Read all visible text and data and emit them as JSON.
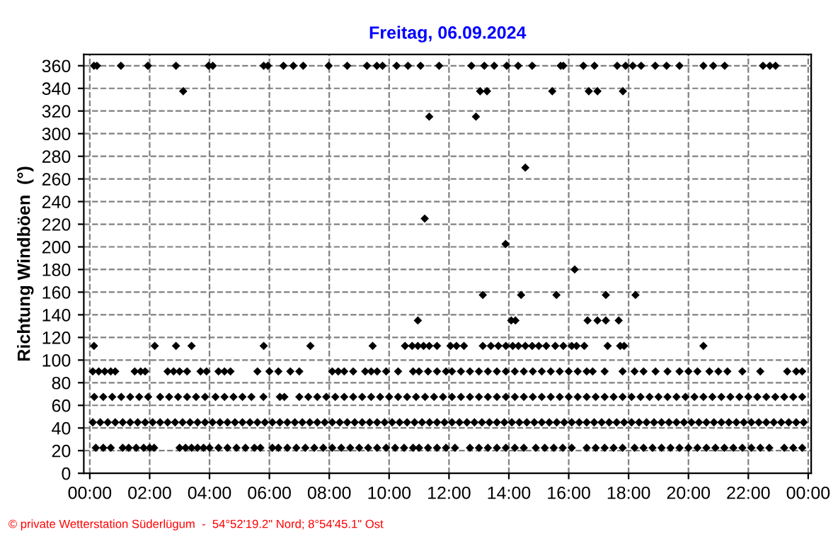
{
  "chart_data": {
    "type": "scatter",
    "title": "Freitag, 06.09.2024",
    "ylabel": "Richtung Windböen  (°)",
    "annotations": [
      "© private Wetterstation Süderlügum  -  54°52'19.2\" Nord; 8°54'45.1\" Ost"
    ],
    "marker": "diamond",
    "grid": true,
    "line_style": "dashed",
    "xlim": [
      -0.2,
      24.1
    ],
    "ylim": [
      0,
      370
    ],
    "xticks": [
      {
        "value": 0,
        "label": "00:00"
      },
      {
        "value": 2,
        "label": "02:00"
      },
      {
        "value": 4,
        "label": "04:00"
      },
      {
        "value": 6,
        "label": "06:00"
      },
      {
        "value": 8,
        "label": "08:00"
      },
      {
        "value": 10,
        "label": "10:00"
      },
      {
        "value": 12,
        "label": "12:00"
      },
      {
        "value": 14,
        "label": "14:00"
      },
      {
        "value": 16,
        "label": "16:00"
      },
      {
        "value": 18,
        "label": "18:00"
      },
      {
        "value": 20,
        "label": "20:00"
      },
      {
        "value": 22,
        "label": "22:00"
      },
      {
        "value": 24,
        "label": "00:00"
      }
    ],
    "yticks": [
      0,
      20,
      40,
      60,
      80,
      100,
      120,
      140,
      160,
      180,
      200,
      220,
      240,
      260,
      280,
      300,
      320,
      340,
      360
    ],
    "series": [
      {
        "color": "#000000",
        "x": [
          0.1,
          0.35,
          0.6,
          0.85,
          1.1,
          1.35,
          1.6,
          1.85,
          2.1,
          2.35,
          2.6,
          2.85,
          3.1,
          3.35,
          3.6,
          3.85,
          4.1,
          4.35,
          4.6,
          4.85,
          5.1,
          5.35,
          5.6,
          5.85,
          6.1,
          6.35,
          6.6,
          6.85,
          7.1,
          7.35,
          7.6,
          7.85,
          8.1,
          8.35,
          8.6,
          8.85,
          9.1,
          9.35,
          9.6,
          9.85,
          10.1,
          10.35,
          10.6,
          10.85,
          11.1,
          11.35,
          11.6,
          11.85,
          12.1,
          12.35,
          12.6,
          12.85,
          13.1,
          13.35,
          13.6,
          13.85,
          14.1,
          14.35,
          14.6,
          14.85,
          15.1,
          15.35,
          15.6,
          15.85,
          16.1,
          16.35,
          16.6,
          16.85,
          17.1,
          17.35,
          17.6,
          17.85,
          18.1,
          18.35,
          18.6,
          18.85,
          19.1,
          19.35,
          19.6,
          19.85,
          20.1,
          20.35,
          20.6,
          20.85,
          21.1,
          21.35,
          21.6,
          21.85,
          22.1,
          22.35,
          22.6,
          22.85,
          23.1,
          23.35,
          23.6,
          23.85
        ],
        "values": [
          45,
          45,
          45,
          45,
          45,
          45,
          45,
          45,
          45,
          45,
          45,
          45,
          45,
          45,
          45,
          45,
          45,
          45,
          45,
          45,
          45,
          45,
          45,
          45,
          45,
          45,
          45,
          45,
          45,
          45,
          45,
          45,
          45,
          45,
          45,
          45,
          45,
          45,
          45,
          45,
          45,
          45,
          45,
          45,
          45,
          45,
          45,
          45,
          45,
          45,
          45,
          45,
          45,
          45,
          45,
          45,
          45,
          45,
          45,
          45,
          45,
          45,
          45,
          45,
          45,
          45,
          45,
          45,
          45,
          45,
          45,
          45,
          45,
          45,
          45,
          45,
          45,
          45,
          45,
          45,
          45,
          45,
          45,
          45,
          45,
          45,
          45,
          45,
          45,
          45,
          45,
          45,
          45,
          45,
          45,
          45
        ]
      },
      {
        "color": "#000000",
        "x": [
          0.15,
          0.45,
          0.75,
          1.05,
          1.35,
          1.65,
          1.95,
          2.35,
          2.65,
          2.95,
          3.25,
          3.55,
          3.85,
          4.2,
          4.5,
          4.8,
          5.1,
          5.4,
          5.8,
          6.35,
          6.5,
          7.0,
          7.3,
          7.6,
          7.9,
          8.2,
          8.5,
          8.8,
          9.1,
          9.4,
          9.7,
          10.0,
          10.3,
          10.6,
          10.9,
          11.2,
          11.5,
          11.8,
          12.1,
          12.4,
          12.7,
          13.0,
          13.3,
          13.6,
          13.9,
          14.2,
          14.5,
          14.8,
          15.1,
          15.4,
          15.7,
          16.0,
          16.3,
          16.6,
          16.9,
          17.2,
          17.5,
          17.8,
          18.1,
          18.4,
          18.7,
          19.0,
          19.3,
          19.6,
          19.9,
          20.2,
          20.5,
          20.8,
          21.1,
          21.4,
          21.7,
          22.0,
          22.3,
          22.6,
          22.9,
          23.2,
          23.5,
          23.8
        ],
        "values": [
          67.5,
          67.5,
          67.5,
          67.5,
          67.5,
          67.5,
          67.5,
          67.5,
          67.5,
          67.5,
          67.5,
          67.5,
          67.5,
          67.5,
          67.5,
          67.5,
          67.5,
          67.5,
          67.5,
          67.5,
          67.5,
          67.5,
          67.5,
          67.5,
          67.5,
          67.5,
          67.5,
          67.5,
          67.5,
          67.5,
          67.5,
          67.5,
          67.5,
          67.5,
          67.5,
          67.5,
          67.5,
          67.5,
          67.5,
          67.5,
          67.5,
          67.5,
          67.5,
          67.5,
          67.5,
          67.5,
          67.5,
          67.5,
          67.5,
          67.5,
          67.5,
          67.5,
          67.5,
          67.5,
          67.5,
          67.5,
          67.5,
          67.5,
          67.5,
          67.5,
          67.5,
          67.5,
          67.5,
          67.5,
          67.5,
          67.5,
          67.5,
          67.5,
          67.5,
          67.5,
          67.5,
          67.5,
          67.5,
          67.5,
          67.5,
          67.5,
          67.5,
          67.5
        ]
      },
      {
        "color": "#000000",
        "x": [
          0.2,
          0.45,
          0.7,
          1.1,
          1.3,
          1.55,
          1.8,
          2.0,
          2.15,
          3.0,
          3.2,
          3.4,
          3.6,
          3.8,
          4.0,
          4.3,
          4.6,
          4.9,
          5.2,
          5.5,
          5.7,
          6.1,
          6.3,
          6.6,
          6.9,
          7.2,
          7.5,
          7.8,
          8.1,
          8.4,
          8.7,
          9.0,
          9.3,
          9.6,
          9.9,
          10.2,
          10.5,
          10.8,
          11.0,
          11.3,
          11.6,
          11.9,
          12.2,
          12.7,
          13.0,
          13.3,
          13.6,
          13.9,
          14.2,
          14.5,
          14.9,
          15.2,
          15.5,
          15.8,
          16.1,
          16.6,
          16.9,
          17.2,
          17.5,
          17.8,
          18.2,
          18.5,
          18.8,
          19.1,
          19.4,
          19.7,
          20.0,
          20.3,
          20.6,
          20.9,
          21.2,
          21.5,
          21.8,
          22.1,
          22.4,
          22.7,
          23.2,
          23.5,
          23.8
        ],
        "values": [
          22.5,
          22.5,
          22.5,
          22.5,
          22.5,
          22.5,
          22.5,
          22.5,
          22.5,
          22.5,
          22.5,
          22.5,
          22.5,
          22.5,
          22.5,
          22.5,
          22.5,
          22.5,
          22.5,
          22.5,
          22.5,
          22.5,
          22.5,
          22.5,
          22.5,
          22.5,
          22.5,
          22.5,
          22.5,
          22.5,
          22.5,
          22.5,
          22.5,
          22.5,
          22.5,
          22.5,
          22.5,
          22.5,
          22.5,
          22.5,
          22.5,
          22.5,
          22.5,
          22.5,
          22.5,
          22.5,
          22.5,
          22.5,
          22.5,
          22.5,
          22.5,
          22.5,
          22.5,
          22.5,
          22.5,
          22.5,
          22.5,
          22.5,
          22.5,
          22.5,
          22.5,
          22.5,
          22.5,
          22.5,
          22.5,
          22.5,
          22.5,
          22.5,
          22.5,
          22.5,
          22.5,
          22.5,
          22.5,
          22.5,
          22.5,
          22.5,
          22.5,
          22.5,
          22.5
        ]
      },
      {
        "color": "#000000",
        "x": [
          0.1,
          0.3,
          0.5,
          0.7,
          0.85,
          1.5,
          1.7,
          1.85,
          2.6,
          2.8,
          3.0,
          3.25,
          3.7,
          3.9,
          4.3,
          4.5,
          4.7,
          5.6,
          6.0,
          6.3,
          6.7,
          7.0,
          8.1,
          8.3,
          8.5,
          8.8,
          9.2,
          9.4,
          9.6,
          9.9,
          10.3,
          10.8,
          11.0,
          11.3,
          11.6,
          11.9,
          12.1,
          12.4,
          12.7,
          13.0,
          13.3,
          13.6,
          13.9,
          14.2,
          14.5,
          14.8,
          15.1,
          15.4,
          15.7,
          16.0,
          16.3,
          16.6,
          16.8,
          17.2,
          17.8,
          18.2,
          18.5,
          18.9,
          19.3,
          19.7,
          20.0,
          20.3,
          20.7,
          21.0,
          21.3,
          21.8,
          22.4,
          23.3,
          23.6,
          23.8
        ],
        "values": [
          90,
          90,
          90,
          90,
          90,
          90,
          90,
          90,
          90,
          90,
          90,
          90,
          90,
          90,
          90,
          90,
          90,
          90,
          90,
          90,
          90,
          90,
          90,
          90,
          90,
          90,
          90,
          90,
          90,
          90,
          90,
          90,
          90,
          90,
          90,
          90,
          90,
          90,
          90,
          90,
          90,
          90,
          90,
          90,
          90,
          90,
          90,
          90,
          90,
          90,
          90,
          90,
          90,
          90,
          90,
          90,
          90,
          90,
          90,
          90,
          90,
          90,
          90,
          90,
          90,
          90,
          90,
          90,
          90,
          90
        ]
      },
      {
        "color": "#000000",
        "x": [
          0.14,
          2.17,
          2.88,
          3.4,
          5.81,
          7.37,
          9.45,
          10.53,
          10.77,
          10.96,
          11.15,
          11.34,
          11.6,
          12.05,
          12.25,
          12.5,
          13.13,
          13.4,
          13.65,
          13.9,
          14.13,
          14.32,
          14.55,
          14.78,
          15.0,
          15.25,
          15.55,
          15.82,
          16.1,
          16.26,
          16.52,
          17.3,
          17.72,
          17.85,
          20.5
        ],
        "values": [
          112.5,
          112.5,
          112.5,
          112.5,
          112.5,
          112.5,
          112.5,
          112.5,
          112.5,
          112.5,
          112.5,
          112.5,
          112.5,
          112.5,
          112.5,
          112.5,
          112.5,
          112.5,
          112.5,
          112.5,
          112.5,
          112.5,
          112.5,
          112.5,
          112.5,
          112.5,
          112.5,
          112.5,
          112.5,
          112.5,
          112.5,
          112.5,
          112.5,
          112.5,
          112.5
        ]
      },
      {
        "color": "#000000",
        "x": [
          10.96,
          14.08,
          14.22,
          16.63,
          16.96,
          17.24,
          17.67,
          13.13,
          14.41,
          15.59,
          17.24,
          18.23,
          11.34,
          12.9,
          14.55,
          11.19,
          13.89,
          16.2,
          3.12,
          13.04,
          13.27,
          15.45,
          16.67,
          16.96,
          17.81
        ],
        "values": [
          135,
          135,
          135,
          135,
          135,
          135,
          135,
          157.5,
          157.5,
          157.5,
          157.5,
          157.5,
          315,
          315,
          270,
          225,
          202.5,
          180,
          337.5,
          337.5,
          337.5,
          337.5,
          337.5,
          337.5,
          337.5
        ]
      },
      {
        "color": "#000000",
        "x": [
          0.14,
          0.24,
          1.04,
          1.94,
          2.88,
          3.97,
          4.11,
          5.81,
          5.95,
          6.47,
          6.8,
          7.13,
          7.98,
          8.6,
          9.26,
          9.59,
          9.78,
          10.25,
          10.63,
          11.05,
          11.67,
          12.75,
          13.18,
          13.51,
          13.93,
          14.31,
          14.78,
          15.73,
          15.82,
          16.49,
          16.86,
          17.62,
          17.9,
          18.14,
          18.42,
          18.89,
          19.27,
          19.7,
          20.5,
          20.83,
          21.21,
          22.49,
          22.72,
          22.91
        ],
        "values": [
          360,
          360,
          360,
          360,
          360,
          360,
          360,
          360,
          360,
          360,
          360,
          360,
          360,
          360,
          360,
          360,
          360,
          360,
          360,
          360,
          360,
          360,
          360,
          360,
          360,
          360,
          360,
          360,
          360,
          360,
          360,
          360,
          360,
          360,
          360,
          360,
          360,
          360,
          360,
          360,
          360,
          360,
          360,
          360
        ]
      }
    ]
  }
}
